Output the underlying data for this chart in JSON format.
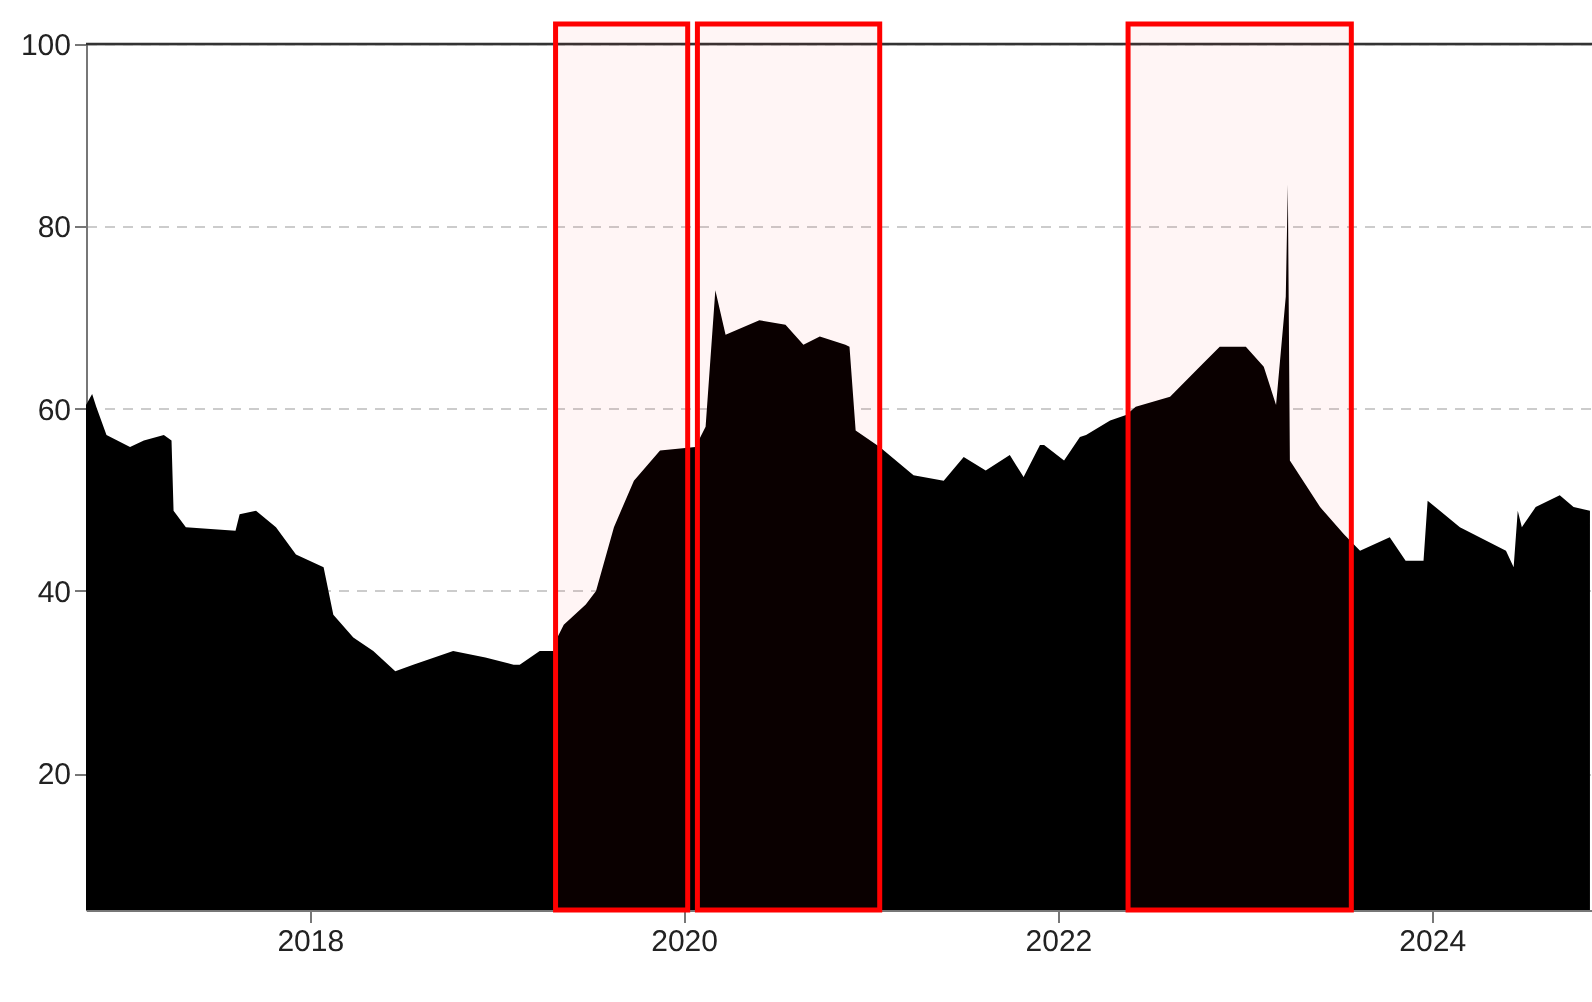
{
  "chart_data": {
    "type": "area",
    "x": [
      "2016-10-21",
      "2016-11-02",
      "2016-11-10",
      "2016-11-30",
      "2017-01-15",
      "2017-02-11",
      "2017-03-22",
      "2017-04-06",
      "2017-04-10",
      "2017-05-04",
      "2017-08-09",
      "2017-08-17",
      "2017-09-18",
      "2017-10-27",
      "2017-12-05",
      "2018-01-28",
      "2018-02-16",
      "2018-03-27",
      "2018-05-05",
      "2018-06-17",
      "2018-07-22",
      "2018-10-08",
      "2018-12-10",
      "2019-02-03",
      "2019-02-15",
      "2019-03-26",
      "2019-04-23",
      "2019-04-26",
      "2019-05-12",
      "2019-06-24",
      "2019-07-14",
      "2019-08-18",
      "2019-09-26",
      "2019-11-16",
      "2020-01-24",
      "2020-02-13",
      "2020-03-03",
      "2020-03-23",
      "2020-05-28",
      "2020-07-18",
      "2020-08-22",
      "2020-09-23",
      "2020-11-12",
      "2020-11-20",
      "2020-12-02",
      "2021-01-18",
      "2021-03-25",
      "2021-05-23",
      "2021-07-01",
      "2021-08-13",
      "2021-09-29",
      "2021-10-26",
      "2021-11-27",
      "2021-12-05",
      "2022-01-13",
      "2022-02-13",
      "2022-02-25",
      "2022-04-13",
      "2022-05-14",
      "2022-06-02",
      "2022-08-08",
      "2022-10-05",
      "2022-11-13",
      "2023-01-03",
      "2023-02-07",
      "2023-03-03",
      "2023-03-22",
      "2023-03-26",
      "2023-03-30",
      "2023-05-28",
      "2023-07-14",
      "2023-08-14",
      "2023-10-11",
      "2023-11-11",
      "2023-12-16",
      "2023-12-24",
      "2024-02-25",
      "2024-05-25",
      "2024-06-09",
      "2024-06-17",
      "2024-06-25",
      "2024-07-22",
      "2024-09-07",
      "2024-10-04",
      "2024-11-05"
    ],
    "series": [
      {
        "color": "#000000",
        "values": [
          60.4,
          61.6,
          60.2,
          57.1,
          55.8,
          56.5,
          57.1,
          56.5,
          48.8,
          47.0,
          46.6,
          48.4,
          48.8,
          47.0,
          44.0,
          42.6,
          37.4,
          34.9,
          33.4,
          31.2,
          31.9,
          33.4,
          32.7,
          31.9,
          31.9,
          33.4,
          33.4,
          34.5,
          36.3,
          38.5,
          40.0,
          47.0,
          52.1,
          55.4,
          55.8,
          58.0,
          73.0,
          68.1,
          69.7,
          69.2,
          67.0,
          67.9,
          67.0,
          66.8,
          57.6,
          55.8,
          52.7,
          52.1,
          54.7,
          53.2,
          54.9,
          52.5,
          56.0,
          56.0,
          54.3,
          56.9,
          57.1,
          58.7,
          59.3,
          60.2,
          61.3,
          64.6,
          66.8,
          66.8,
          64.6,
          60.4,
          72.3,
          84.6,
          54.3,
          49.2,
          46.2,
          44.4,
          45.9,
          43.3,
          43.3,
          49.9,
          47.0,
          44.4,
          42.6,
          48.8,
          47.0,
          49.2,
          50.5,
          49.2,
          48.8
        ]
      }
    ],
    "xlim": [
      "2016-10-21",
      "2024-11-09"
    ],
    "xticks": [
      "2018",
      "2020",
      "2022",
      "2024"
    ],
    "ylim": [
      5,
      100
    ],
    "yticks": [
      20,
      40,
      60,
      80,
      100
    ],
    "grid": "y",
    "bands": [
      {
        "axis": "x",
        "from": "2019-04-26",
        "to": "2020-01-09",
        "color": "#ff0000"
      },
      {
        "axis": "x",
        "from": "2020-01-28",
        "to": "2021-01-18",
        "color": "#ff0000"
      },
      {
        "axis": "x",
        "from": "2022-05-18",
        "to": "2023-07-28",
        "color": "#ff0000"
      }
    ]
  }
}
